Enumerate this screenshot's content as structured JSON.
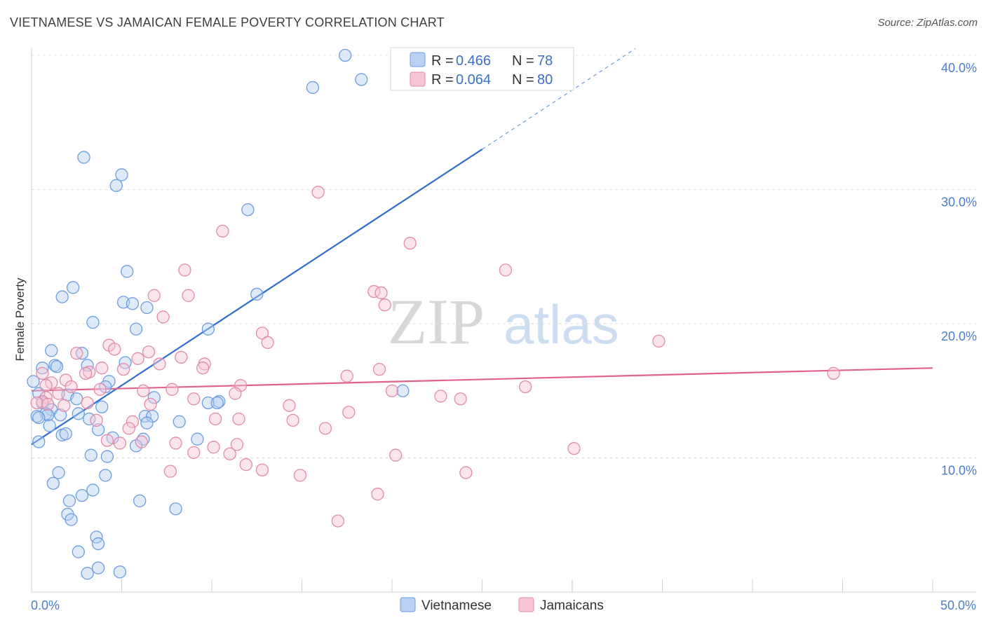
{
  "header": {
    "title": "VIETNAMESE VS JAMAICAN FEMALE POVERTY CORRELATION CHART",
    "source": "Source: ZipAtlas.com"
  },
  "watermark": {
    "zip": "ZIP",
    "atlas": "atlas"
  },
  "chart_data": {
    "type": "scatter",
    "xlabel": "",
    "ylabel": "Female Poverty",
    "xlim": [
      0,
      50
    ],
    "ylim": [
      0,
      40
    ],
    "x_tick_labels": [
      "0.0%",
      "50.0%"
    ],
    "y_ticks": [
      10,
      20,
      30,
      40
    ],
    "y_tick_labels": [
      "10.0%",
      "20.0%",
      "30.0%",
      "40.0%"
    ],
    "grid": true,
    "legend_placement": "top-center",
    "legend": [
      {
        "r_label": "R =",
        "r_value": "0.466",
        "n_label": "N =",
        "n_value": "78"
      },
      {
        "r_label": "R =",
        "r_value": "0.064",
        "n_label": "N =",
        "n_value": "80"
      }
    ],
    "series": [
      {
        "name": "Vietnamese",
        "color": "#6b9de0",
        "fill": "#b9d1f2",
        "trend": {
          "x0": 0,
          "y0": 11.0,
          "x1": 25.0,
          "y1": 33.0,
          "dash_to_x": 33.5,
          "dash_to_y": 40.5,
          "color": "#2f6fce"
        },
        "points": [
          [
            17.4,
            40.0
          ],
          [
            18.3,
            38.2
          ],
          [
            15.6,
            37.6
          ],
          [
            2.9,
            32.4
          ],
          [
            5.0,
            31.1
          ],
          [
            4.7,
            30.3
          ],
          [
            12.0,
            28.5
          ],
          [
            5.3,
            23.9
          ],
          [
            2.3,
            22.7
          ],
          [
            1.7,
            22.0
          ],
          [
            5.1,
            21.6
          ],
          [
            5.6,
            21.5
          ],
          [
            6.4,
            21.2
          ],
          [
            12.5,
            22.2
          ],
          [
            3.4,
            20.1
          ],
          [
            5.8,
            19.6
          ],
          [
            9.8,
            19.6
          ],
          [
            1.1,
            18.0
          ],
          [
            2.8,
            17.8
          ],
          [
            5.2,
            17.1
          ],
          [
            1.3,
            16.9
          ],
          [
            1.4,
            16.8
          ],
          [
            0.6,
            16.7
          ],
          [
            3.1,
            16.9
          ],
          [
            0.1,
            15.7
          ],
          [
            4.3,
            15.7
          ],
          [
            4.1,
            15.3
          ],
          [
            0.4,
            14.8
          ],
          [
            2.0,
            14.7
          ],
          [
            2.5,
            14.4
          ],
          [
            6.8,
            14.5
          ],
          [
            0.6,
            14.1
          ],
          [
            3.9,
            13.8
          ],
          [
            9.8,
            14.1
          ],
          [
            10.4,
            14.2
          ],
          [
            10.3,
            14.1
          ],
          [
            20.6,
            15.0
          ],
          [
            1.1,
            13.6
          ],
          [
            0.8,
            13.3
          ],
          [
            0.9,
            13.2
          ],
          [
            0.3,
            13.1
          ],
          [
            0.4,
            13.0
          ],
          [
            1.6,
            13.2
          ],
          [
            2.6,
            13.3
          ],
          [
            3.2,
            12.9
          ],
          [
            6.3,
            13.1
          ],
          [
            6.7,
            13.1
          ],
          [
            8.2,
            12.7
          ],
          [
            1.0,
            12.4
          ],
          [
            6.4,
            12.6
          ],
          [
            3.7,
            12.1
          ],
          [
            1.7,
            11.7
          ],
          [
            1.9,
            11.8
          ],
          [
            4.5,
            11.5
          ],
          [
            6.2,
            11.4
          ],
          [
            0.4,
            11.2
          ],
          [
            9.2,
            11.4
          ],
          [
            5.8,
            10.9
          ],
          [
            3.3,
            10.2
          ],
          [
            4.2,
            10.1
          ],
          [
            1.5,
            8.9
          ],
          [
            4.1,
            8.7
          ],
          [
            1.2,
            8.1
          ],
          [
            3.4,
            7.6
          ],
          [
            2.8,
            7.2
          ],
          [
            2.1,
            6.8
          ],
          [
            6.0,
            6.8
          ],
          [
            8.0,
            6.2
          ],
          [
            2.0,
            5.8
          ],
          [
            2.2,
            5.4
          ],
          [
            3.6,
            4.1
          ],
          [
            3.7,
            3.6
          ],
          [
            2.6,
            3.0
          ],
          [
            3.7,
            1.8
          ],
          [
            3.1,
            1.4
          ],
          [
            4.9,
            1.5
          ]
        ]
      },
      {
        "name": "Jamaicans",
        "color": "#e28aa8",
        "fill": "#f6c6d6",
        "trend": {
          "x0": 0,
          "y0": 15.0,
          "x1": 50,
          "y1": 16.7,
          "color": "#e0628d"
        },
        "points": [
          [
            15.9,
            29.8
          ],
          [
            10.6,
            26.9
          ],
          [
            21.0,
            26.0
          ],
          [
            8.5,
            24.0
          ],
          [
            26.3,
            24.0
          ],
          [
            19.0,
            22.4
          ],
          [
            19.4,
            22.3
          ],
          [
            6.8,
            22.1
          ],
          [
            8.7,
            22.1
          ],
          [
            19.6,
            21.4
          ],
          [
            7.3,
            20.5
          ],
          [
            12.8,
            19.3
          ],
          [
            13.1,
            18.6
          ],
          [
            34.8,
            18.7
          ],
          [
            4.3,
            18.4
          ],
          [
            4.6,
            18.1
          ],
          [
            6.5,
            17.9
          ],
          [
            2.5,
            17.8
          ],
          [
            5.9,
            17.4
          ],
          [
            8.3,
            17.5
          ],
          [
            7.1,
            17.0
          ],
          [
            9.6,
            17.0
          ],
          [
            9.5,
            16.7
          ],
          [
            3.9,
            16.7
          ],
          [
            19.3,
            16.6
          ],
          [
            5.1,
            16.6
          ],
          [
            0.6,
            16.3
          ],
          [
            3.2,
            16.4
          ],
          [
            3.0,
            16.3
          ],
          [
            17.5,
            16.1
          ],
          [
            44.5,
            16.3
          ],
          [
            1.9,
            15.8
          ],
          [
            1.1,
            15.6
          ],
          [
            11.6,
            15.4
          ],
          [
            2.2,
            15.3
          ],
          [
            0.8,
            15.4
          ],
          [
            3.8,
            15.1
          ],
          [
            7.8,
            15.1
          ],
          [
            20.0,
            15.0
          ],
          [
            27.4,
            15.3
          ],
          [
            6.2,
            15.0
          ],
          [
            11.3,
            14.8
          ],
          [
            1.5,
            14.8
          ],
          [
            0.8,
            14.5
          ],
          [
            22.7,
            14.6
          ],
          [
            9.0,
            14.4
          ],
          [
            23.8,
            14.4
          ],
          [
            0.6,
            14.2
          ],
          [
            0.3,
            14.1
          ],
          [
            3.1,
            14.1
          ],
          [
            0.9,
            14.0
          ],
          [
            1.8,
            13.9
          ],
          [
            14.3,
            13.9
          ],
          [
            6.6,
            14.0
          ],
          [
            17.6,
            13.4
          ],
          [
            11.5,
            12.9
          ],
          [
            10.2,
            12.9
          ],
          [
            14.5,
            12.8
          ],
          [
            3.6,
            12.8
          ],
          [
            5.6,
            12.7
          ],
          [
            16.3,
            12.2
          ],
          [
            5.4,
            12.2
          ],
          [
            4.2,
            11.3
          ],
          [
            4.9,
            11.1
          ],
          [
            8.0,
            11.1
          ],
          [
            11.4,
            11.0
          ],
          [
            10.1,
            10.8
          ],
          [
            30.1,
            10.7
          ],
          [
            11.0,
            10.3
          ],
          [
            9.0,
            10.4
          ],
          [
            6.1,
            11.2
          ],
          [
            20.2,
            10.2
          ],
          [
            11.9,
            9.5
          ],
          [
            12.8,
            9.1
          ],
          [
            7.7,
            9.0
          ],
          [
            14.9,
            8.7
          ],
          [
            24.1,
            8.9
          ],
          [
            19.2,
            7.3
          ],
          [
            17.0,
            5.3
          ]
        ]
      }
    ]
  }
}
